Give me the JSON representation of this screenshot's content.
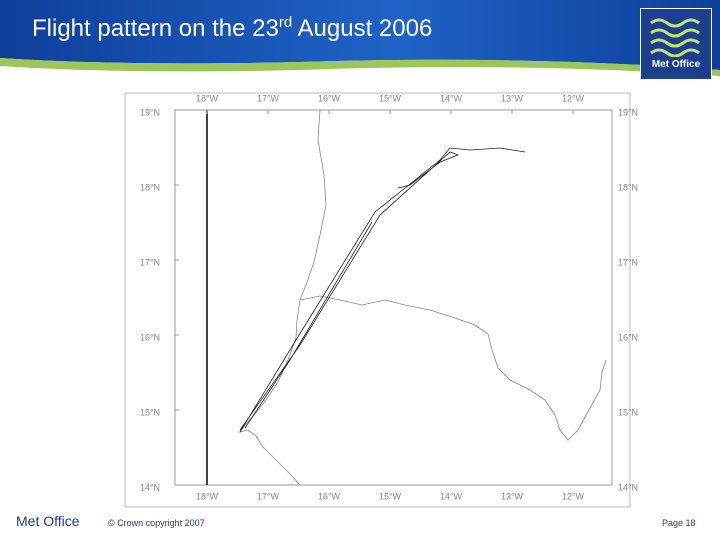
{
  "header": {
    "title_start": "Flight pattern on the 23",
    "title_sup": "rd",
    "title_end": " August 2006",
    "logo": "Met Office"
  },
  "map": {
    "longitudes": [
      "18°W",
      "17°W",
      "16°W",
      "15°W",
      "14°W",
      "13°W",
      "12°W"
    ],
    "latitudes": [
      "19°N",
      "18°N",
      "17°N",
      "16°N",
      "15°N",
      "14°N"
    ]
  },
  "footer": {
    "organisation": "Met Office",
    "copyright": "© Crown copyright 2007",
    "page": "Page 18"
  }
}
